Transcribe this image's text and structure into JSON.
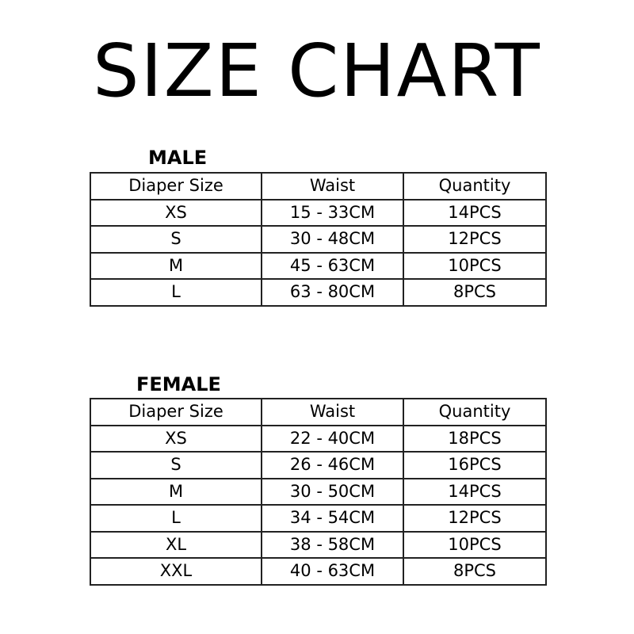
{
  "title": "SIZE CHART",
  "headers": [
    "Diaper Size",
    "Waist",
    "Quantity"
  ],
  "male": {
    "label": "MALE",
    "rows": [
      [
        "XS",
        "15 - 33CM",
        "14PCS"
      ],
      [
        "S",
        "30 - 48CM",
        "12PCS"
      ],
      [
        "M",
        "45 - 63CM",
        "10PCS"
      ],
      [
        "L",
        "63 - 80CM",
        "8PCS"
      ]
    ]
  },
  "female": {
    "label": "FEMALE",
    "rows": [
      [
        "XS",
        "22 - 40CM",
        "18PCS"
      ],
      [
        "S",
        "26 - 46CM",
        "16PCS"
      ],
      [
        "M",
        "30 - 50CM",
        "14PCS"
      ],
      [
        "L",
        "34 - 54CM",
        "12PCS"
      ],
      [
        "XL",
        "38 - 58CM",
        "10PCS"
      ],
      [
        "XXL",
        "40 - 63CM",
        "8PCS"
      ]
    ]
  }
}
